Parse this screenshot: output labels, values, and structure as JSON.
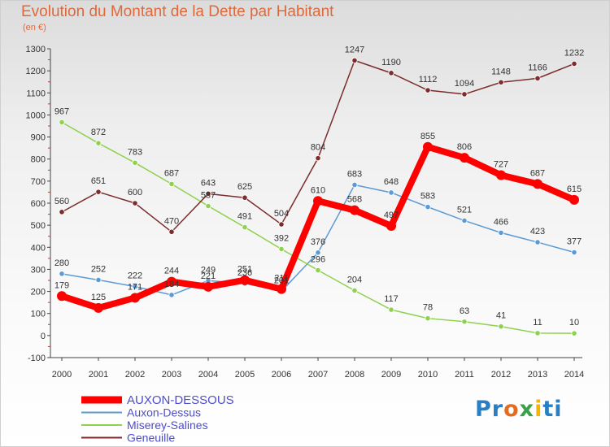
{
  "title": "Evolution du Montant de la Dette par Habitant",
  "subtitle": "(en €)",
  "logo": {
    "parts": [
      "Pr",
      "o",
      "x",
      "i",
      "ti"
    ],
    "colors": [
      "#2a7fc4",
      "#e56b1f",
      "#3aa04a",
      "#f2b705",
      "#2a7fc4"
    ]
  },
  "chart_data": {
    "type": "line",
    "x": [
      "2000",
      "2001",
      "2002",
      "2003",
      "2004",
      "2005",
      "2006",
      "2007",
      "2008",
      "2009",
      "2010",
      "2011",
      "2012",
      "2013",
      "2014"
    ],
    "ylim": [
      -100,
      1300
    ],
    "yticks": [
      -100,
      0,
      100,
      200,
      300,
      400,
      500,
      600,
      700,
      800,
      900,
      1000,
      1100,
      1200,
      1300
    ],
    "grid": false,
    "legend_position": "bottom-left",
    "series": [
      {
        "name": "AUXON-DESSOUS",
        "color": "#ff0000",
        "emphasis": true,
        "values": [
          179,
          125,
          171,
          244,
          221,
          251,
          211,
          610,
          568,
          497,
          855,
          806,
          727,
          687,
          615
        ]
      },
      {
        "name": "Auxon-Dessus",
        "color": "#5b9bd5",
        "emphasis": false,
        "values": [
          280,
          252,
          222,
          184,
          249,
          236,
          201,
          376,
          683,
          648,
          583,
          521,
          466,
          423,
          377
        ]
      },
      {
        "name": "Miserey-Salines",
        "color": "#8fd14f",
        "emphasis": false,
        "values": [
          967,
          872,
          783,
          687,
          587,
          491,
          392,
          296,
          204,
          117,
          78,
          63,
          41,
          11,
          10
        ]
      },
      {
        "name": "Geneuille",
        "color": "#7b2c2c",
        "emphasis": false,
        "values": [
          560,
          651,
          600,
          470,
          643,
          625,
          504,
          804,
          1247,
          1190,
          1112,
          1094,
          1148,
          1166,
          1232
        ]
      }
    ]
  }
}
